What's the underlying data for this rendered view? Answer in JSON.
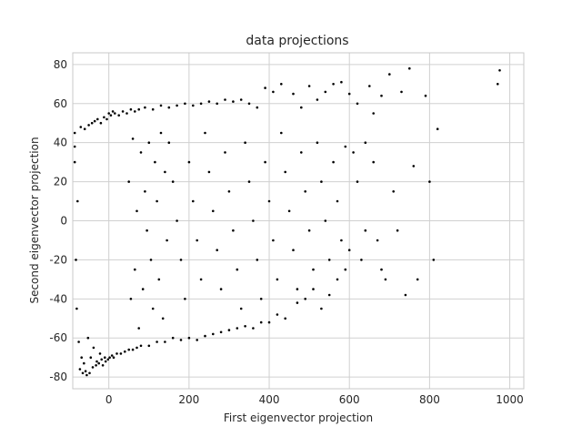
{
  "chart_data": {
    "type": "scatter",
    "title": "data projections",
    "xlabel": "First eigenvector projection",
    "ylabel": "Second eigenvector projection",
    "xlim": [
      -90,
      1035
    ],
    "ylim": [
      -86,
      86
    ],
    "xticks": [
      0,
      200,
      400,
      600,
      800,
      1000
    ],
    "yticks": [
      -80,
      -60,
      -40,
      -20,
      0,
      20,
      40,
      60,
      80
    ],
    "grid": true,
    "legend": "none",
    "marker_color": "#000000",
    "style": "whitegrid",
    "series": [
      {
        "points": [
          [
            -85,
            45
          ],
          [
            -85,
            38
          ],
          [
            -85,
            30
          ],
          [
            -82,
            -20
          ],
          [
            -80,
            -45
          ],
          [
            -78,
            10
          ],
          [
            -75,
            -62
          ],
          [
            -72,
            -76
          ],
          [
            -70,
            48
          ],
          [
            -68,
            -70
          ],
          [
            -65,
            -78
          ],
          [
            -62,
            -73
          ],
          [
            -60,
            47
          ],
          [
            -58,
            -77
          ],
          [
            -55,
            -79
          ],
          [
            -52,
            -60
          ],
          [
            -50,
            49
          ],
          [
            -48,
            -78
          ],
          [
            -45,
            -70
          ],
          [
            -42,
            50
          ],
          [
            -40,
            -75
          ],
          [
            -38,
            -65
          ],
          [
            -35,
            51
          ],
          [
            -32,
            -74
          ],
          [
            -30,
            -72
          ],
          [
            -28,
            52
          ],
          [
            -25,
            -73
          ],
          [
            -22,
            -68
          ],
          [
            -20,
            50
          ],
          [
            -18,
            -71
          ],
          [
            -15,
            -74
          ],
          [
            -12,
            53
          ],
          [
            -10,
            -70
          ],
          [
            -8,
            -72
          ],
          [
            -5,
            52
          ],
          [
            -2,
            -71
          ],
          [
            0,
            55
          ],
          [
            2,
            -70
          ],
          [
            5,
            54
          ],
          [
            8,
            -69
          ],
          [
            10,
            56
          ],
          [
            12,
            -70
          ],
          [
            15,
            55
          ],
          [
            20,
            -68
          ],
          [
            25,
            54
          ],
          [
            30,
            -68
          ],
          [
            35,
            56
          ],
          [
            40,
            -67
          ],
          [
            45,
            55
          ],
          [
            50,
            -66
          ],
          [
            55,
            57
          ],
          [
            60,
            -66
          ],
          [
            65,
            56
          ],
          [
            70,
            -65
          ],
          [
            75,
            57
          ],
          [
            80,
            -64
          ],
          [
            90,
            58
          ],
          [
            100,
            -64
          ],
          [
            110,
            57
          ],
          [
            120,
            -62
          ],
          [
            130,
            59
          ],
          [
            140,
            -62
          ],
          [
            150,
            58
          ],
          [
            160,
            -60
          ],
          [
            170,
            59
          ],
          [
            180,
            -61
          ],
          [
            190,
            60
          ],
          [
            200,
            -60
          ],
          [
            210,
            59
          ],
          [
            220,
            -61
          ],
          [
            230,
            60
          ],
          [
            240,
            -59
          ],
          [
            250,
            61
          ],
          [
            260,
            -58
          ],
          [
            270,
            60
          ],
          [
            280,
            -57
          ],
          [
            290,
            62
          ],
          [
            300,
            -56
          ],
          [
            310,
            61
          ],
          [
            320,
            -55
          ],
          [
            330,
            62
          ],
          [
            340,
            -54
          ],
          [
            350,
            60
          ],
          [
            360,
            -55
          ],
          [
            370,
            58
          ],
          [
            380,
            -52
          ],
          [
            390,
            68
          ],
          [
            400,
            -52
          ],
          [
            410,
            66
          ],
          [
            420,
            -48
          ],
          [
            430,
            70
          ],
          [
            440,
            -50
          ],
          [
            460,
            65
          ],
          [
            470,
            -42
          ],
          [
            480,
            58
          ],
          [
            490,
            -40
          ],
          [
            500,
            69
          ],
          [
            510,
            -35
          ],
          [
            520,
            62
          ],
          [
            530,
            -45
          ],
          [
            540,
            66
          ],
          [
            550,
            -38
          ],
          [
            560,
            70
          ],
          [
            570,
            -30
          ],
          [
            580,
            71
          ],
          [
            590,
            -25
          ],
          [
            600,
            65
          ],
          [
            610,
            35
          ],
          [
            620,
            60
          ],
          [
            630,
            -20
          ],
          [
            640,
            40
          ],
          [
            650,
            69
          ],
          [
            660,
            55
          ],
          [
            670,
            -10
          ],
          [
            680,
            64
          ],
          [
            690,
            -30
          ],
          [
            700,
            75
          ],
          [
            710,
            15
          ],
          [
            720,
            -5
          ],
          [
            730,
            66
          ],
          [
            740,
            -38
          ],
          [
            750,
            78
          ],
          [
            760,
            28
          ],
          [
            770,
            -30
          ],
          [
            790,
            64
          ],
          [
            800,
            20
          ],
          [
            810,
            -20
          ],
          [
            820,
            47
          ],
          [
            970,
            70
          ],
          [
            975,
            77
          ],
          [
            150,
            40
          ],
          [
            160,
            20
          ],
          [
            170,
            0
          ],
          [
            180,
            -20
          ],
          [
            190,
            -40
          ],
          [
            200,
            30
          ],
          [
            210,
            10
          ],
          [
            220,
            -10
          ],
          [
            230,
            -30
          ],
          [
            240,
            45
          ],
          [
            250,
            25
          ],
          [
            260,
            5
          ],
          [
            270,
            -15
          ],
          [
            280,
            -35
          ],
          [
            290,
            35
          ],
          [
            300,
            15
          ],
          [
            310,
            -5
          ],
          [
            320,
            -25
          ],
          [
            330,
            -45
          ],
          [
            340,
            40
          ],
          [
            350,
            20
          ],
          [
            360,
            0
          ],
          [
            370,
            -20
          ],
          [
            380,
            -40
          ],
          [
            390,
            30
          ],
          [
            400,
            10
          ],
          [
            410,
            -10
          ],
          [
            420,
            -30
          ],
          [
            430,
            45
          ],
          [
            440,
            25
          ],
          [
            450,
            5
          ],
          [
            460,
            -15
          ],
          [
            470,
            -35
          ],
          [
            480,
            35
          ],
          [
            490,
            15
          ],
          [
            500,
            -5
          ],
          [
            510,
            -25
          ],
          [
            520,
            40
          ],
          [
            530,
            20
          ],
          [
            540,
            0
          ],
          [
            550,
            -20
          ],
          [
            560,
            30
          ],
          [
            570,
            10
          ],
          [
            580,
            -10
          ],
          [
            590,
            38
          ],
          [
            600,
            -15
          ],
          [
            620,
            20
          ],
          [
            640,
            -5
          ],
          [
            660,
            30
          ],
          [
            680,
            -25
          ],
          [
            120,
            10
          ],
          [
            125,
            -30
          ],
          [
            130,
            45
          ],
          [
            135,
            -50
          ],
          [
            140,
            25
          ],
          [
            145,
            -10
          ],
          [
            110,
            -45
          ],
          [
            115,
            30
          ],
          [
            105,
            -20
          ],
          [
            100,
            40
          ],
          [
            95,
            -5
          ],
          [
            90,
            15
          ],
          [
            85,
            -35
          ],
          [
            80,
            35
          ],
          [
            75,
            -55
          ],
          [
            70,
            5
          ],
          [
            65,
            -25
          ],
          [
            60,
            42
          ],
          [
            55,
            -40
          ],
          [
            50,
            20
          ]
        ]
      }
    ]
  }
}
